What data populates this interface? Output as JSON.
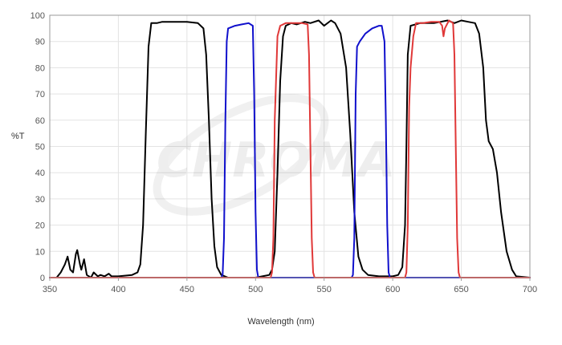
{
  "chart_data": {
    "type": "line",
    "title": "",
    "xlabel": "Wavelength (nm)",
    "ylabel": "%T",
    "xlim": [
      350,
      700
    ],
    "ylim": [
      0,
      100
    ],
    "xticks": [
      350,
      400,
      450,
      500,
      550,
      600,
      650,
      700
    ],
    "yticks": [
      0,
      10,
      20,
      30,
      40,
      50,
      60,
      70,
      80,
      90,
      100
    ],
    "grid": true,
    "legend": "none",
    "watermark_text": "CHROMA",
    "series": [
      {
        "color": "#000000",
        "points": [
          [
            350,
            0
          ],
          [
            355,
            0
          ],
          [
            358,
            2
          ],
          [
            361,
            5
          ],
          [
            363,
            8
          ],
          [
            365,
            3
          ],
          [
            367,
            2
          ],
          [
            369,
            9
          ],
          [
            370,
            10.5
          ],
          [
            372,
            5
          ],
          [
            373,
            3
          ],
          [
            375,
            7
          ],
          [
            377,
            1
          ],
          [
            380,
            0
          ],
          [
            382,
            2
          ],
          [
            385,
            0.5
          ],
          [
            387,
            1
          ],
          [
            390,
            0.5
          ],
          [
            393,
            1.5
          ],
          [
            395,
            0.5
          ],
          [
            400,
            0.5
          ],
          [
            410,
            1
          ],
          [
            414,
            2
          ],
          [
            416,
            5
          ],
          [
            418,
            20
          ],
          [
            420,
            55
          ],
          [
            422,
            88
          ],
          [
            424,
            97
          ],
          [
            428,
            97
          ],
          [
            432,
            97.5
          ],
          [
            440,
            97.5
          ],
          [
            450,
            97.5
          ],
          [
            458,
            97
          ],
          [
            462,
            95
          ],
          [
            464,
            85
          ],
          [
            466,
            60
          ],
          [
            468,
            30
          ],
          [
            470,
            12
          ],
          [
            472,
            4
          ],
          [
            475,
            1
          ],
          [
            480,
            0
          ],
          [
            500,
            0
          ],
          [
            505,
            0.5
          ],
          [
            510,
            1
          ],
          [
            512,
            3
          ],
          [
            514,
            10
          ],
          [
            516,
            40
          ],
          [
            518,
            75
          ],
          [
            520,
            92
          ],
          [
            522,
            96
          ],
          [
            526,
            97
          ],
          [
            530,
            96.5
          ],
          [
            536,
            97.5
          ],
          [
            540,
            97
          ],
          [
            546,
            98
          ],
          [
            550,
            96
          ],
          [
            555,
            98
          ],
          [
            558,
            97
          ],
          [
            562,
            93
          ],
          [
            566,
            80
          ],
          [
            569,
            55
          ],
          [
            572,
            25
          ],
          [
            575,
            8
          ],
          [
            578,
            3
          ],
          [
            582,
            1
          ],
          [
            590,
            0.5
          ],
          [
            600,
            0.5
          ],
          [
            604,
            1
          ],
          [
            607,
            4
          ],
          [
            609,
            20
          ],
          [
            610,
            50
          ],
          [
            611,
            85
          ],
          [
            613,
            96
          ],
          [
            620,
            97
          ],
          [
            630,
            97
          ],
          [
            640,
            98
          ],
          [
            645,
            97
          ],
          [
            650,
            98
          ],
          [
            655,
            97.5
          ],
          [
            660,
            97
          ],
          [
            663,
            93
          ],
          [
            666,
            80
          ],
          [
            668,
            60
          ],
          [
            670,
            52
          ],
          [
            673,
            49
          ],
          [
            676,
            40
          ],
          [
            679,
            25
          ],
          [
            683,
            10
          ],
          [
            687,
            3
          ],
          [
            690,
            0.5
          ],
          [
            700,
            0
          ]
        ]
      },
      {
        "color": "#1010cc",
        "points": [
          [
            350,
            0
          ],
          [
            475,
            0
          ],
          [
            476,
            1
          ],
          [
            477,
            15
          ],
          [
            478,
            60
          ],
          [
            479,
            90
          ],
          [
            480,
            95
          ],
          [
            485,
            96
          ],
          [
            490,
            96.5
          ],
          [
            495,
            97
          ],
          [
            498,
            96
          ],
          [
            499,
            70
          ],
          [
            500,
            25
          ],
          [
            501,
            3
          ],
          [
            502,
            0
          ],
          [
            570,
            0
          ],
          [
            571,
            1
          ],
          [
            572,
            15
          ],
          [
            573,
            70
          ],
          [
            574,
            88
          ],
          [
            576,
            90
          ],
          [
            580,
            93
          ],
          [
            585,
            95
          ],
          [
            590,
            96
          ],
          [
            592,
            96
          ],
          [
            594,
            90
          ],
          [
            595,
            60
          ],
          [
            596,
            20
          ],
          [
            597,
            2
          ],
          [
            598,
            0
          ],
          [
            700,
            0
          ]
        ]
      },
      {
        "color": "#e03838",
        "points": [
          [
            350,
            0
          ],
          [
            511,
            0
          ],
          [
            512,
            2
          ],
          [
            513,
            15
          ],
          [
            514,
            60
          ],
          [
            516,
            92
          ],
          [
            518,
            96
          ],
          [
            522,
            97
          ],
          [
            528,
            97
          ],
          [
            534,
            97
          ],
          [
            538,
            96.5
          ],
          [
            539,
            85
          ],
          [
            540,
            50
          ],
          [
            541,
            15
          ],
          [
            542,
            2
          ],
          [
            543,
            0
          ],
          [
            609,
            0
          ],
          [
            610,
            2
          ],
          [
            611,
            20
          ],
          [
            612,
            65
          ],
          [
            613,
            80
          ],
          [
            615,
            92
          ],
          [
            617,
            97
          ],
          [
            622,
            97
          ],
          [
            628,
            97.5
          ],
          [
            634,
            97.5
          ],
          [
            636,
            96
          ],
          [
            637,
            92
          ],
          [
            638,
            95
          ],
          [
            641,
            98
          ],
          [
            644,
            97
          ],
          [
            645,
            85
          ],
          [
            646,
            50
          ],
          [
            647,
            15
          ],
          [
            648,
            2
          ],
          [
            649,
            0
          ],
          [
            700,
            0
          ]
        ]
      }
    ]
  }
}
